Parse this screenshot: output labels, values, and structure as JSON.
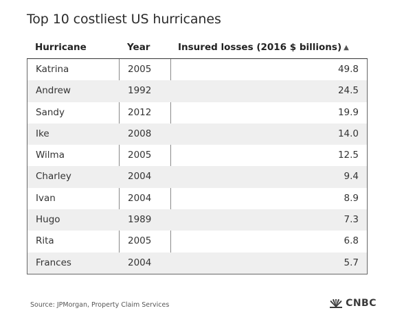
{
  "title": "Top 10 costliest US hurricanes",
  "table": {
    "headers": {
      "hurricane": "Hurricane",
      "year": "Year",
      "losses": "Insured losses (2016 $ billions)"
    },
    "sort_indicator": "▲",
    "rows": [
      {
        "name": "Katrina",
        "year": "2005",
        "loss": "49.8"
      },
      {
        "name": "Andrew",
        "year": "1992",
        "loss": "24.5"
      },
      {
        "name": "Sandy",
        "year": "2012",
        "loss": "19.9"
      },
      {
        "name": "Ike",
        "year": "2008",
        "loss": "14.0"
      },
      {
        "name": "Wilma",
        "year": "2005",
        "loss": "12.5"
      },
      {
        "name": "Charley",
        "year": "2004",
        "loss": "9.4"
      },
      {
        "name": "Ivan",
        "year": "2004",
        "loss": "8.9"
      },
      {
        "name": "Hugo",
        "year": "1989",
        "loss": "7.3"
      },
      {
        "name": "Rita",
        "year": "2005",
        "loss": "6.8"
      },
      {
        "name": "Frances",
        "year": "2004",
        "loss": "5.7"
      }
    ]
  },
  "footer": {
    "source": "Source: JPMorgan, Property Claim Services",
    "brand": "CNBC"
  },
  "colors": {
    "alt_row": "#efefef",
    "text": "#333333"
  }
}
